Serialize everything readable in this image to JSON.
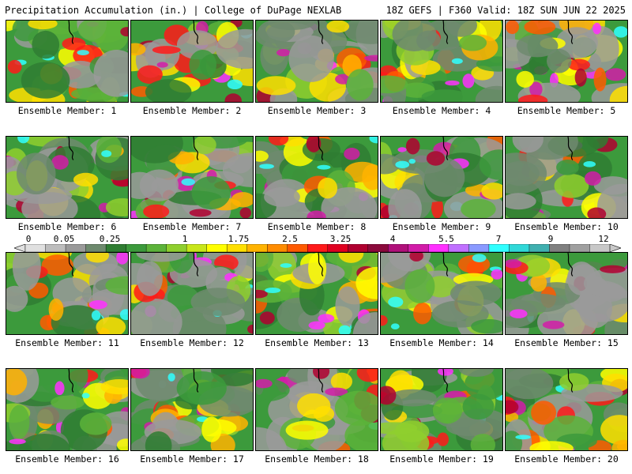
{
  "header": {
    "title": "Precipitation Accumulation (in.) | College of DuPage NEXLAB",
    "valid": "18Z GEFS | F360 Valid: 18Z SUN JUN 22 2025"
  },
  "panels": [
    {
      "caption": "Ensemble Member: 1",
      "member": 1
    },
    {
      "caption": "Ensemble Member: 2",
      "member": 2
    },
    {
      "caption": "Ensemble Member: 3",
      "member": 3
    },
    {
      "caption": "Ensemble Member: 4",
      "member": 4
    },
    {
      "caption": "Ensemble Member: 5",
      "member": 5
    },
    {
      "caption": "Ensemble Member: 6",
      "member": 6
    },
    {
      "caption": "Ensemble Member: 7",
      "member": 7
    },
    {
      "caption": "Ensemble Member: 8",
      "member": 8
    },
    {
      "caption": "Ensemble Member: 9",
      "member": 9
    },
    {
      "caption": "Ensemble Member: 10",
      "member": 10
    },
    {
      "caption": "Ensemble Member: 11",
      "member": 11
    },
    {
      "caption": "Ensemble Member: 12",
      "member": 12
    },
    {
      "caption": "Ensemble Member: 13",
      "member": 13
    },
    {
      "caption": "Ensemble Member: 14",
      "member": 14
    },
    {
      "caption": "Ensemble Member: 15",
      "member": 15
    },
    {
      "caption": "Ensemble Member: 16",
      "member": 16
    },
    {
      "caption": "Ensemble Member: 17",
      "member": 17
    },
    {
      "caption": "Ensemble Member: 18",
      "member": 18
    },
    {
      "caption": "Ensemble Member: 19",
      "member": 19
    },
    {
      "caption": "Ensemble Member: 20",
      "member": 20
    }
  ],
  "colorbar": {
    "tick_labels": [
      "0",
      "0.05",
      "0.25",
      "1",
      "1.75",
      "2.5",
      "3.25",
      "4",
      "5.5",
      "7",
      "9",
      "12"
    ],
    "colors": [
      "#e0e0e0",
      "#bdbdbd",
      "#9a9a9a",
      "#6e8a6e",
      "#2f7d32",
      "#3c9a3c",
      "#5cb33a",
      "#8fcf2e",
      "#c8e61a",
      "#ffff00",
      "#ffdf00",
      "#ffb300",
      "#ff8c00",
      "#ff5a00",
      "#ff1a1a",
      "#e00020",
      "#b00030",
      "#8b0a3c",
      "#b0107a",
      "#d21ca8",
      "#ff30ff",
      "#c070ff",
      "#8a9aff",
      "#30ffff",
      "#30d8d8",
      "#40b0b0",
      "#808080",
      "#a0a0a0",
      "#c8c8c8"
    ]
  }
}
